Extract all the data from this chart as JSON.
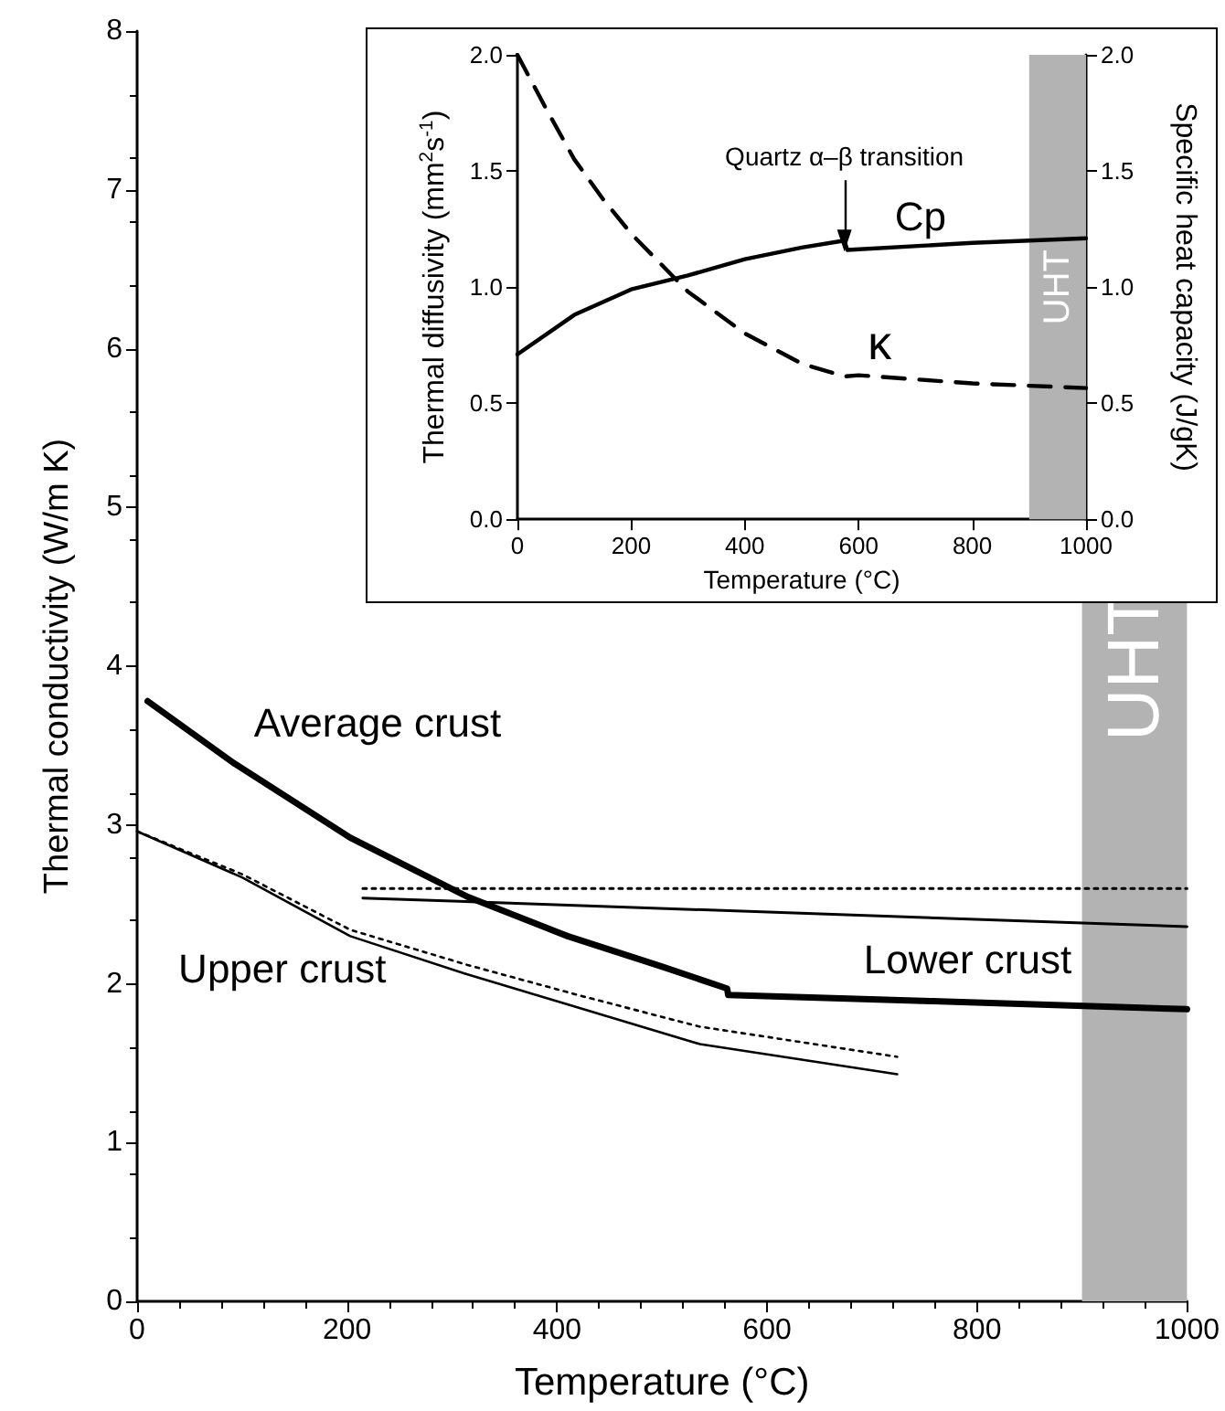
{
  "chart_data": [
    {
      "type": "line",
      "xlabel": "Temperature (°C)",
      "ylabel": "Thermal conductivity (W/m K)",
      "xlim": [
        0,
        1000
      ],
      "ylim": [
        0,
        8
      ],
      "xticks": [
        0,
        200,
        400,
        600,
        800,
        1000
      ],
      "yticks": [
        0,
        1,
        2,
        3,
        4,
        5,
        6,
        7,
        8
      ],
      "series": [
        {
          "name": "Average crust",
          "color": "#000000",
          "line_style": "solid",
          "x": [
            10,
            92,
            203,
            314,
            410,
            499,
            562,
            563,
            758,
            1000
          ],
          "values": [
            3.78,
            3.39,
            2.92,
            2.55,
            2.3,
            2.11,
            1.97,
            1.93,
            1.89,
            1.84
          ]
        },
        {
          "name": "Upper crust",
          "color": "#000000",
          "line_style": "solid",
          "x": [
            0,
            100,
            203,
            314,
            425,
            536,
            724
          ],
          "values": [
            2.96,
            2.67,
            2.3,
            2.06,
            1.84,
            1.62,
            1.43
          ]
        },
        {
          "color": "#000000",
          "line_style": "dotted",
          "x": [
            0,
            100,
            203,
            314,
            425,
            536,
            724
          ],
          "values": [
            2.96,
            2.69,
            2.34,
            2.12,
            1.92,
            1.73,
            1.54
          ]
        },
        {
          "name": "Lower crust",
          "color": "#000000",
          "line_style": "solid",
          "x": [
            215,
            1000
          ],
          "values": [
            2.54,
            2.36
          ]
        },
        {
          "color": "#000000",
          "line_style": "dotted",
          "x": [
            215,
            1000
          ],
          "values": [
            2.6,
            2.6
          ]
        }
      ],
      "bands": [
        {
          "axis": "x",
          "from": 900,
          "to": 1000,
          "label": "UHT",
          "color": "#b3b3b3"
        }
      ]
    },
    {
      "type": "line",
      "xlabel": "Temperature (°C)",
      "ylabel": "Thermal diffusivity (mm$^{2}$s$^{-1}$)",
      "y2label": "Specific heat capacity (J/gK)",
      "xlim": [
        0,
        1000
      ],
      "ylim": [
        0,
        2
      ],
      "y2lim": [
        0,
        2
      ],
      "xticks": [
        0,
        200,
        400,
        600,
        800,
        1000
      ],
      "yticks": [
        {
          "value": 0,
          "label": "0.0"
        },
        0.5,
        {
          "value": 1,
          "label": "1.0"
        },
        1.5,
        {
          "value": 2,
          "label": "2.0"
        }
      ],
      "y2ticks": [
        {
          "value": 0,
          "label": "0.0"
        },
        0.5,
        {
          "value": 1,
          "label": "1.0"
        },
        1.5,
        {
          "value": 2,
          "label": "2.0"
        }
      ],
      "series": [
        {
          "name": "Cp",
          "color": "#000000",
          "line_style": "solid",
          "axis": "y2",
          "x": [
            0,
            100,
            200,
            300,
            400,
            500,
            575,
            580,
            800,
            1000
          ],
          "values": [
            0.71,
            0.88,
            0.99,
            1.05,
            1.12,
            1.17,
            1.2,
            1.16,
            1.19,
            1.21
          ]
        },
        {
          "name": "κ",
          "color": "#000000",
          "line_style": "dashed",
          "x": [
            0,
            50,
            100,
            150,
            200,
            300,
            400,
            500,
            575,
            600,
            800,
            1000
          ],
          "values": [
            2.0,
            1.77,
            1.55,
            1.38,
            1.23,
            0.98,
            0.8,
            0.67,
            0.615,
            0.62,
            0.585,
            0.565
          ]
        }
      ],
      "annotations": [
        {
          "text": "Quartz α–β transition",
          "x": 575,
          "y": 1.2
        }
      ],
      "bands": [
        {
          "axis": "x",
          "from": 900,
          "to": 1000,
          "label": "UHT",
          "color": "#b3b3b3"
        }
      ]
    }
  ]
}
